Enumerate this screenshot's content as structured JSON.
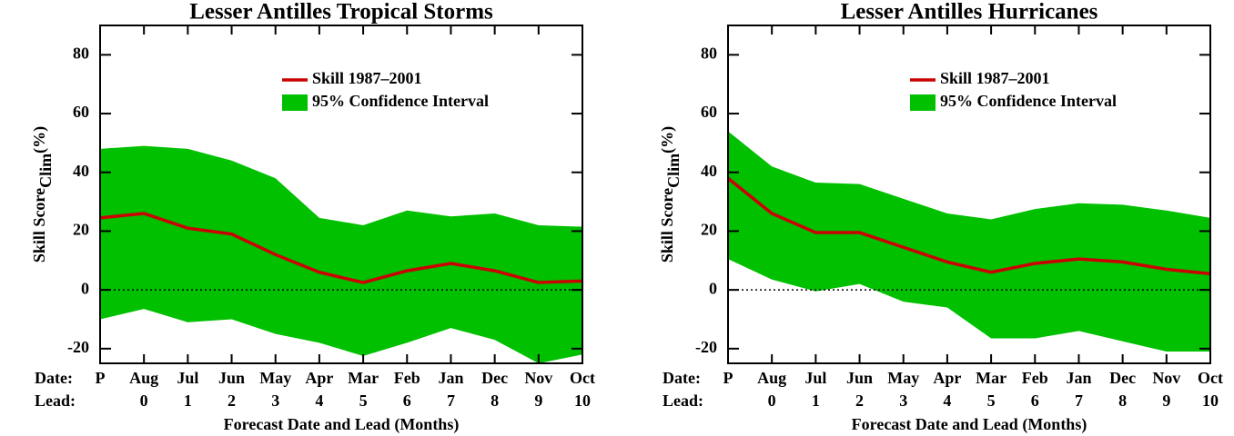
{
  "chart_data": [
    {
      "type": "band-line",
      "title": "Lesser Antilles Tropical Storms",
      "ylabel": [
        "Skill Score",
        "Clim",
        "(%)"
      ],
      "xlabel": "Forecast Date and Lead (Months)",
      "row_labels": [
        "Date:",
        "Lead:"
      ],
      "categories": [
        "P",
        "Aug",
        "Jul",
        "Jun",
        "May",
        "Apr",
        "Mar",
        "Feb",
        "Jan",
        "Dec",
        "Nov",
        "Oct"
      ],
      "leads": [
        null,
        0,
        1,
        2,
        3,
        4,
        5,
        6,
        7,
        8,
        9,
        10
      ],
      "series": [
        {
          "name": "Skill 1987–2001",
          "color": "#cc0000",
          "values": [
            24.5,
            26,
            21,
            19,
            12,
            6,
            2.5,
            6.5,
            9,
            6.5,
            2.5,
            3
          ]
        }
      ],
      "band": {
        "name": "95% Confidence Interval",
        "color": "#00c000",
        "upper": [
          48,
          49,
          48,
          44,
          38,
          24.5,
          22,
          27,
          25,
          26,
          22,
          21.5
        ],
        "lower": [
          -10,
          -6.5,
          -11,
          -10,
          -15,
          -18,
          -22.5,
          -18,
          -13,
          -17,
          -25,
          -22
        ]
      },
      "reference_line": 0,
      "ylim": [
        -25,
        90
      ],
      "yticks": [
        -20,
        0,
        20,
        40,
        60,
        80
      ]
    },
    {
      "type": "band-line",
      "title": "Lesser Antilles Hurricanes",
      "ylabel": [
        "Skill Score",
        "Clim",
        "(%)"
      ],
      "xlabel": "Forecast Date and Lead (Months)",
      "row_labels": [
        "Date:",
        "Lead:"
      ],
      "categories": [
        "P",
        "Aug",
        "Jul",
        "Jun",
        "May",
        "Apr",
        "Mar",
        "Feb",
        "Jan",
        "Dec",
        "Nov",
        "Oct"
      ],
      "leads": [
        null,
        0,
        1,
        2,
        3,
        4,
        5,
        6,
        7,
        8,
        9,
        10
      ],
      "series": [
        {
          "name": "Skill 1987–2001",
          "color": "#cc0000",
          "values": [
            38,
            26,
            19.5,
            19.5,
            14.5,
            9.5,
            6,
            9,
            10.5,
            9.5,
            7,
            5.5
          ]
        }
      ],
      "band": {
        "name": "95% Confidence Interval",
        "color": "#00c000",
        "upper": [
          54,
          42,
          36.5,
          36,
          31,
          26,
          24,
          27.5,
          29.5,
          29,
          27,
          24.5
        ],
        "lower": [
          10.5,
          3.5,
          -0.5,
          2,
          -4,
          -6,
          -16.5,
          -16.5,
          -14,
          -17.5,
          -21,
          -21
        ]
      },
      "reference_line": 0,
      "ylim": [
        -25,
        90
      ],
      "yticks": [
        -20,
        0,
        20,
        40,
        60,
        80
      ]
    }
  ]
}
